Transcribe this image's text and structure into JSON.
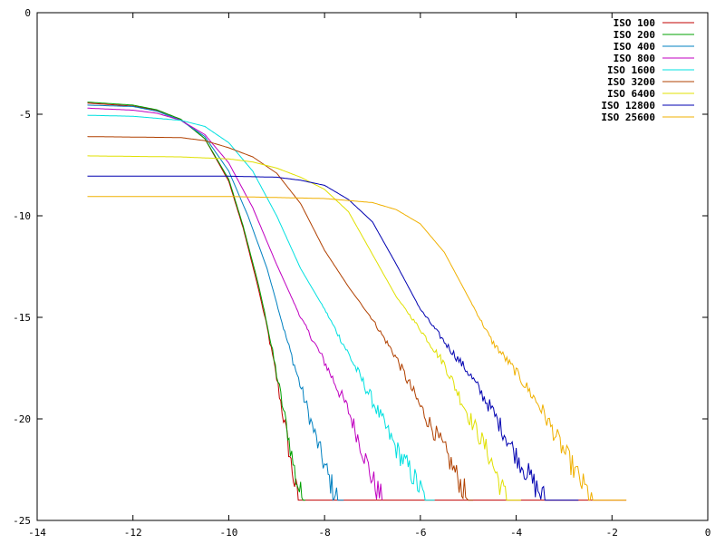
{
  "chart_data": {
    "type": "line",
    "title": "",
    "xlabel": "",
    "ylabel": "",
    "xlim": [
      -14,
      0
    ],
    "ylim": [
      -25,
      0
    ],
    "grid": false,
    "legend_position": "top-right",
    "x_ticks": [
      {
        "value": -14,
        "label": "-14"
      },
      {
        "value": -12,
        "label": "-12"
      },
      {
        "value": -10,
        "label": "-10"
      },
      {
        "value": -8,
        "label": "-8"
      },
      {
        "value": -6,
        "label": "-6"
      },
      {
        "value": -4,
        "label": "-4"
      },
      {
        "value": -2,
        "label": "-2"
      },
      {
        "value": 0,
        "label": "0"
      }
    ],
    "y_ticks": [
      {
        "value": 0,
        "label": "0"
      },
      {
        "value": -5,
        "label": "-5"
      },
      {
        "value": -10,
        "label": "-10"
      },
      {
        "value": -15,
        "label": "-15"
      },
      {
        "value": -20,
        "label": "-20"
      },
      {
        "value": -25,
        "label": "-25"
      }
    ],
    "series": [
      {
        "name": "ISO 100",
        "color": "#c00000",
        "x": [
          -12.95,
          -12.0,
          -11.5,
          -11.0,
          -10.5,
          -10.0,
          -9.7,
          -9.4,
          -9.2,
          -9.0,
          -8.8,
          -8.7,
          -8.6,
          -8.55,
          -1.7
        ],
        "y": [
          -4.45,
          -4.6,
          -4.8,
          -5.25,
          -6.2,
          -8.3,
          -10.6,
          -13.4,
          -15.5,
          -18.0,
          -20.7,
          -22.2,
          -23.5,
          -24.0,
          -24.0
        ]
      },
      {
        "name": "ISO 200",
        "color": "#00a000",
        "x": [
          -12.95,
          -12.0,
          -11.5,
          -11.0,
          -10.5,
          -10.0,
          -9.7,
          -9.4,
          -9.2,
          -9.0,
          -8.8,
          -8.6,
          -8.5,
          -8.4
        ],
        "y": [
          -4.4,
          -4.55,
          -4.78,
          -5.25,
          -6.2,
          -8.2,
          -10.5,
          -13.2,
          -15.3,
          -17.8,
          -20.3,
          -22.9,
          -23.7,
          -24.0
        ]
      },
      {
        "name": "ISO 400",
        "color": "#0080c0",
        "x": [
          -12.95,
          -12.0,
          -11.5,
          -11.0,
          -10.5,
          -10.0,
          -9.6,
          -9.2,
          -9.0,
          -8.8,
          -8.6,
          -8.4,
          -8.2,
          -8.0,
          -7.9,
          -7.8,
          -7.7,
          -7.6
        ],
        "y": [
          -4.55,
          -4.62,
          -4.85,
          -5.3,
          -6.1,
          -7.8,
          -10.0,
          -12.6,
          -14.3,
          -16.0,
          -17.6,
          -19.2,
          -20.8,
          -22.3,
          -23.0,
          -23.6,
          -24.0,
          -24.0
        ]
      },
      {
        "name": "ISO 800",
        "color": "#c000c0",
        "x": [
          -12.95,
          -12.0,
          -11.5,
          -11.0,
          -10.5,
          -10.0,
          -9.5,
          -9.0,
          -8.5,
          -8.0,
          -7.5,
          -7.2,
          -7.0,
          -6.8
        ],
        "y": [
          -4.7,
          -4.8,
          -4.95,
          -5.3,
          -6.0,
          -7.4,
          -9.6,
          -12.4,
          -15.0,
          -17.2,
          -19.6,
          -21.6,
          -23.0,
          -24.0
        ]
      },
      {
        "name": "ISO 1600",
        "color": "#00e0e0",
        "x": [
          -12.95,
          -12.0,
          -11.0,
          -10.5,
          -10.0,
          -9.5,
          -9.0,
          -8.5,
          -8.0,
          -7.5,
          -7.0,
          -6.5,
          -6.2,
          -6.0,
          -5.9,
          -5.7
        ],
        "y": [
          -5.05,
          -5.1,
          -5.3,
          -5.6,
          -6.4,
          -7.8,
          -10.0,
          -12.6,
          -14.6,
          -16.8,
          -19.1,
          -21.5,
          -22.6,
          -23.5,
          -24.0,
          -24.0
        ]
      },
      {
        "name": "ISO 3200",
        "color": "#b04000",
        "x": [
          -12.95,
          -11.0,
          -10.5,
          -10.0,
          -9.5,
          -9.0,
          -8.5,
          -8.0,
          -7.5,
          -7.0,
          -6.5,
          -6.0,
          -5.5,
          -5.3,
          -5.0,
          -4.9
        ],
        "y": [
          -6.1,
          -6.15,
          -6.3,
          -6.65,
          -7.1,
          -7.9,
          -9.4,
          -11.7,
          -13.5,
          -15.1,
          -17.0,
          -19.4,
          -21.5,
          -22.5,
          -24.0,
          -24.0
        ]
      },
      {
        "name": "ISO 6400",
        "color": "#e0e000",
        "x": [
          -12.95,
          -11.0,
          -10.0,
          -9.5,
          -9.0,
          -8.5,
          -8.0,
          -7.5,
          -7.0,
          -6.5,
          -6.0,
          -5.5,
          -5.0,
          -4.6,
          -4.4,
          -4.2,
          -3.9
        ],
        "y": [
          -7.05,
          -7.1,
          -7.2,
          -7.35,
          -7.65,
          -8.1,
          -8.7,
          -9.8,
          -11.9,
          -14.0,
          -15.6,
          -17.3,
          -19.8,
          -21.6,
          -22.8,
          -24.0,
          -24.0
        ]
      },
      {
        "name": "ISO 12800",
        "color": "#0000b0",
        "x": [
          -12.95,
          -10.0,
          -9.0,
          -8.5,
          -8.0,
          -7.5,
          -7.0,
          -6.5,
          -6.0,
          -5.5,
          -5.0,
          -4.5,
          -4.0,
          -3.6,
          -3.4,
          -3.3,
          -3.1,
          -2.7
        ],
        "y": [
          -8.05,
          -8.05,
          -8.1,
          -8.25,
          -8.5,
          -9.2,
          -10.3,
          -12.4,
          -14.6,
          -16.2,
          -17.7,
          -19.6,
          -21.8,
          -23.3,
          -24.0,
          -24.0,
          -24.0,
          -24.0
        ]
      },
      {
        "name": "ISO 25600",
        "color": "#f0b000",
        "x": [
          -12.95,
          -10.0,
          -8.0,
          -7.0,
          -6.5,
          -6.0,
          -5.5,
          -5.0,
          -4.5,
          -4.0,
          -3.5,
          -3.0,
          -2.6,
          -2.4,
          -2.2,
          -1.7
        ],
        "y": [
          -9.05,
          -9.05,
          -9.15,
          -9.35,
          -9.7,
          -10.4,
          -11.8,
          -14.0,
          -16.2,
          -17.7,
          -19.4,
          -21.6,
          -23.3,
          -24.0,
          -24.0,
          -24.0
        ]
      }
    ]
  }
}
